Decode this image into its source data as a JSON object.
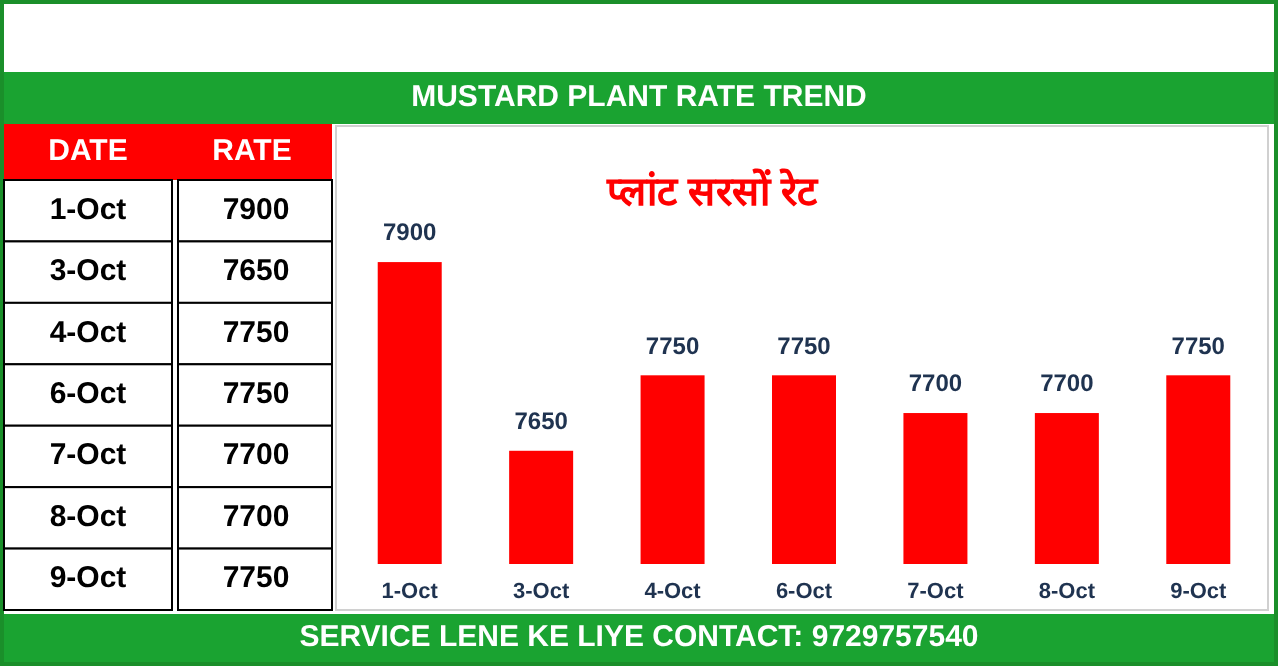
{
  "chart_data": [
    {
      "type": "other",
      "annotations": [
        "DATE",
        "RATE",
        "1-Oct",
        "7900",
        "3-Oct",
        "7650",
        "4-Oct",
        "7750",
        "6-Oct",
        "7750",
        "7-Oct",
        "7700",
        "8-Oct",
        "7700",
        "9-Oct",
        "7750"
      ]
    },
    {
      "type": "bar",
      "title": "MUSTARD PLANT RATE TREND",
      "subtitle": "प्लांट सरसों रेट",
      "categories": [
        "1-Oct",
        "3-Oct",
        "4-Oct",
        "6-Oct",
        "7-Oct",
        "8-Oct",
        "9-Oct"
      ],
      "values": [
        7900,
        7650,
        7750,
        7750,
        7700,
        7700,
        7750
      ],
      "color": "#ff0000",
      "ylim": [
        7500,
        8075
      ],
      "data_labels": true,
      "tick_labels": "x",
      "annotations": [
        "SERVICE LENE KE LIYE CONTACT: 9729757540"
      ]
    }
  ]
}
